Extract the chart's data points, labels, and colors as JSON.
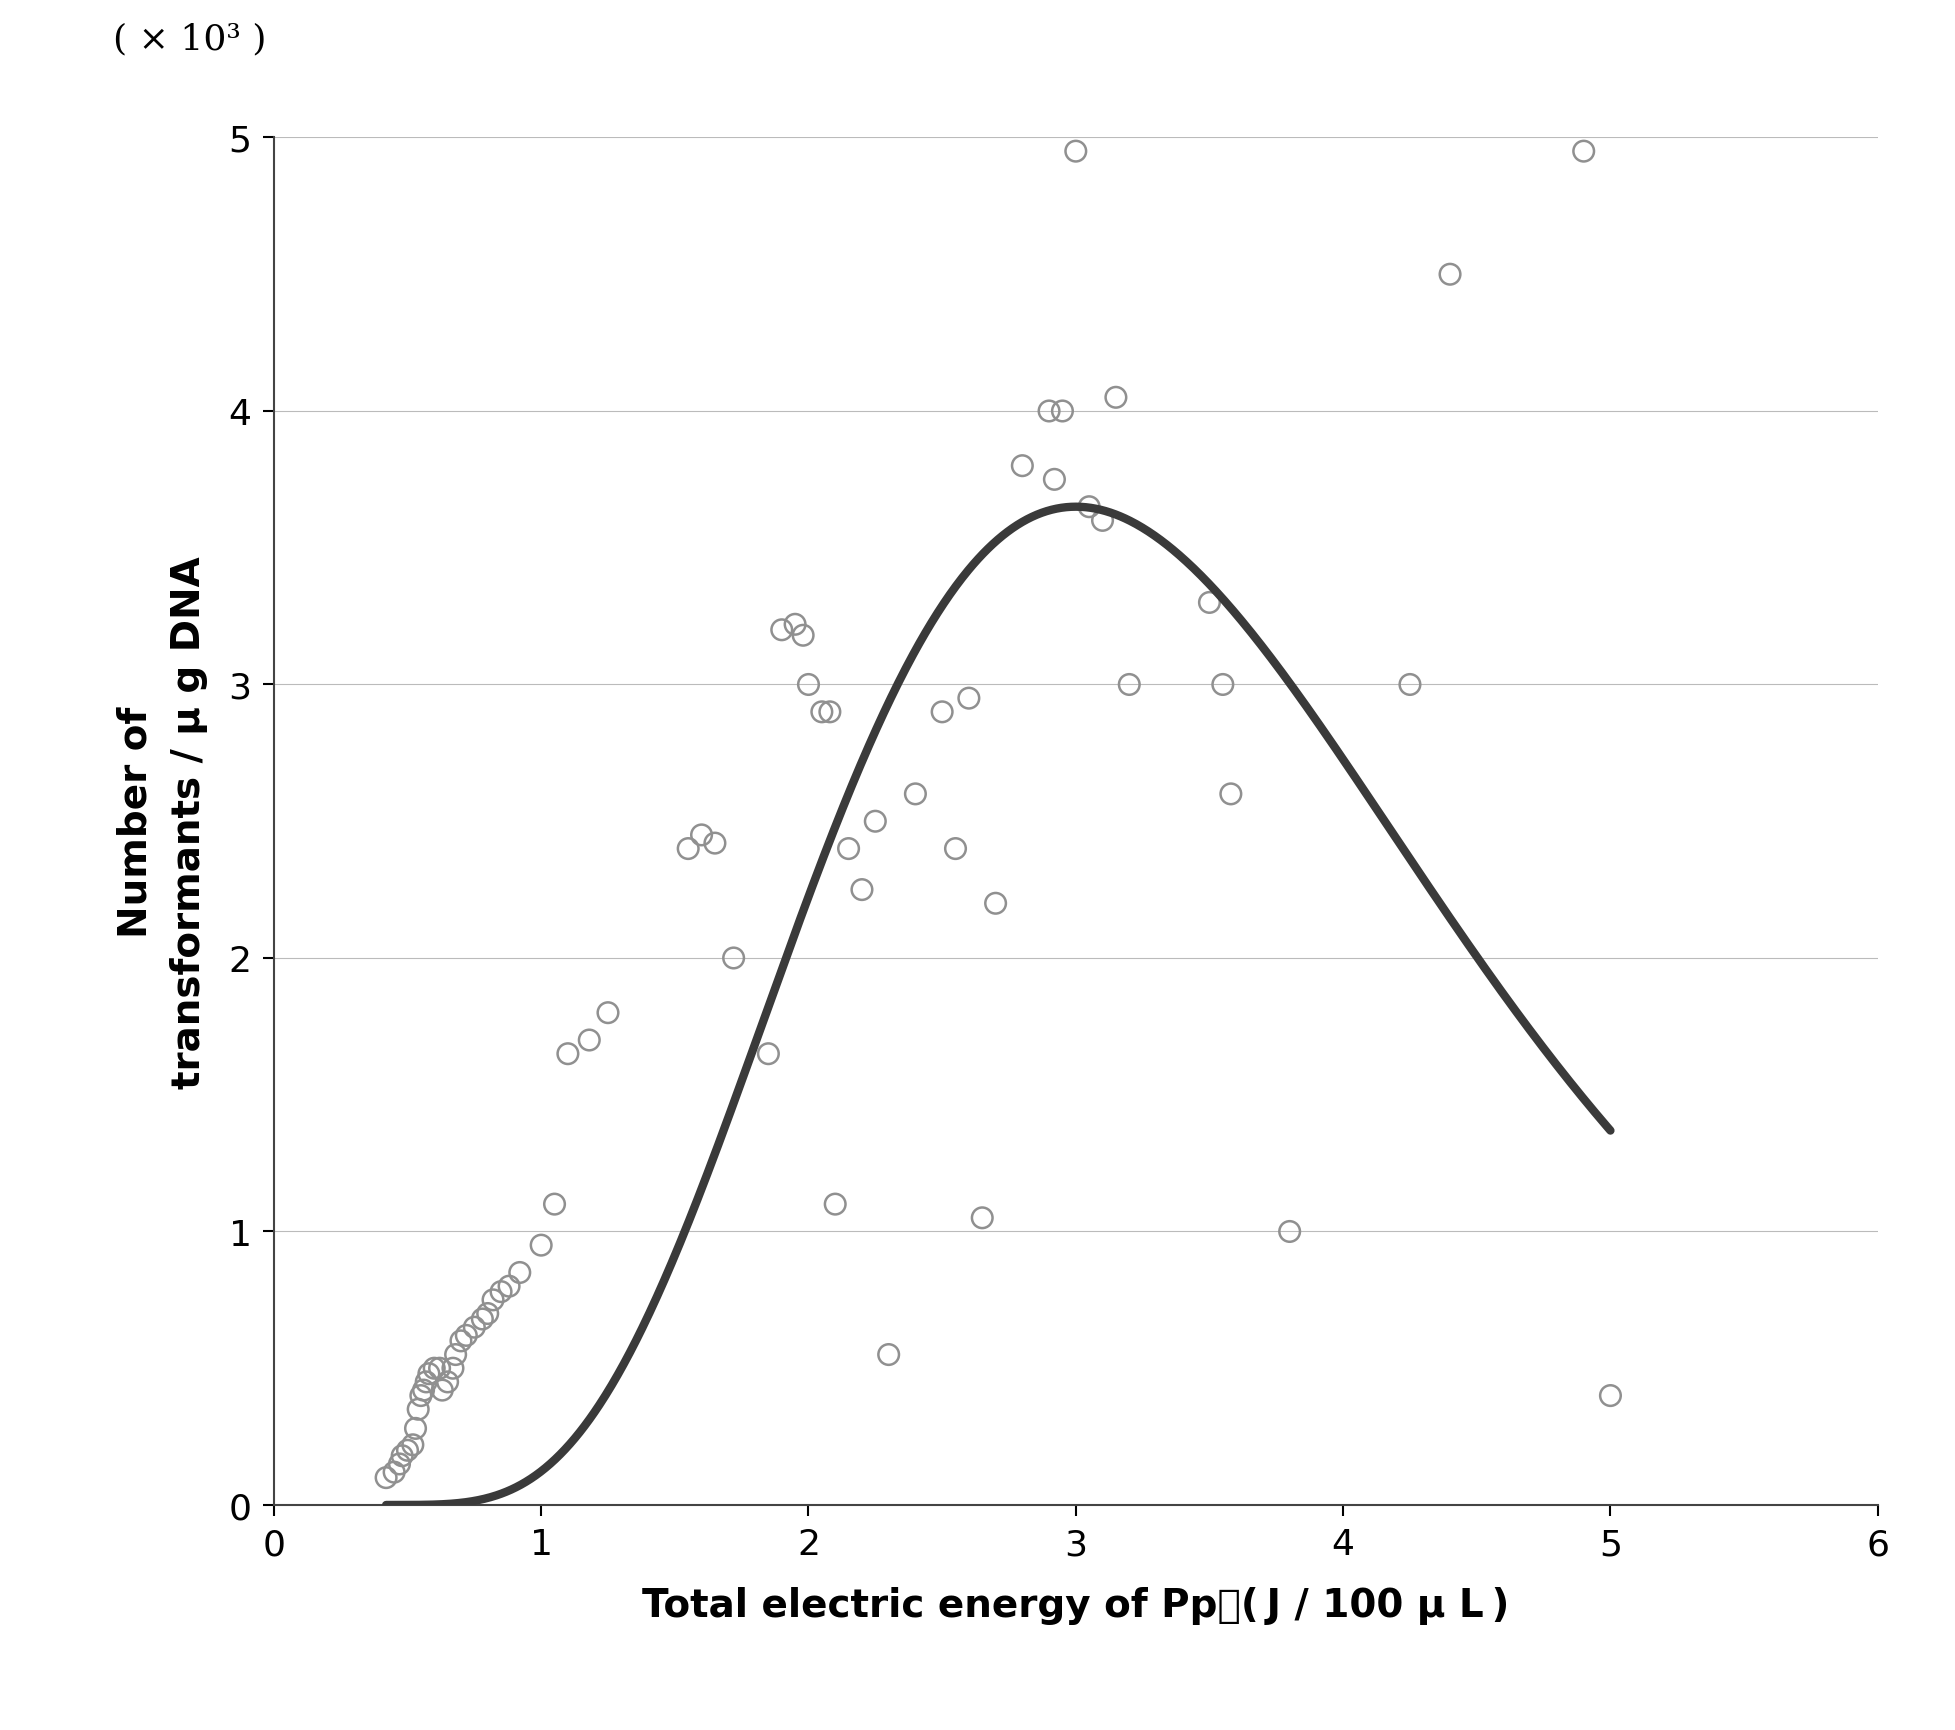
{
  "title_scale": "( × 10³ )",
  "xlabel": "Total electric energy of Pp　( J / 100 μ L )",
  "ylabel": "Number of\ntransformants / μ g DNA",
  "xlim": [
    0,
    6
  ],
  "ylim": [
    0,
    5
  ],
  "xticks": [
    0,
    1,
    2,
    3,
    4,
    5,
    6
  ],
  "yticks": [
    0,
    1,
    2,
    3,
    4,
    5
  ],
  "scatter_x": [
    0.42,
    0.45,
    0.47,
    0.48,
    0.5,
    0.52,
    0.53,
    0.54,
    0.55,
    0.56,
    0.57,
    0.58,
    0.6,
    0.62,
    0.63,
    0.65,
    0.67,
    0.68,
    0.7,
    0.72,
    0.75,
    0.78,
    0.8,
    0.82,
    0.85,
    0.88,
    0.92,
    1.0,
    1.05,
    1.1,
    1.18,
    1.25,
    1.55,
    1.6,
    1.65,
    1.72,
    1.85,
    1.9,
    1.95,
    1.98,
    2.0,
    2.05,
    2.08,
    2.1,
    2.15,
    2.2,
    2.25,
    2.3,
    2.4,
    2.5,
    2.55,
    2.6,
    2.65,
    2.7,
    2.8,
    2.9,
    2.92,
    2.95,
    3.0,
    3.05,
    3.1,
    3.15,
    3.2,
    3.5,
    3.55,
    3.58,
    3.8,
    4.25,
    4.4,
    4.9,
    5.0
  ],
  "scatter_y": [
    0.1,
    0.12,
    0.15,
    0.18,
    0.2,
    0.22,
    0.28,
    0.35,
    0.4,
    0.42,
    0.45,
    0.48,
    0.5,
    0.5,
    0.42,
    0.45,
    0.5,
    0.55,
    0.6,
    0.62,
    0.65,
    0.68,
    0.7,
    0.75,
    0.78,
    0.8,
    0.85,
    0.95,
    1.1,
    1.65,
    1.7,
    1.8,
    2.4,
    2.45,
    2.42,
    2.0,
    1.65,
    3.2,
    3.22,
    3.18,
    3.0,
    2.9,
    2.9,
    1.1,
    2.4,
    2.25,
    2.5,
    0.55,
    2.6,
    2.9,
    2.4,
    2.95,
    1.05,
    2.2,
    3.8,
    4.0,
    3.75,
    4.0,
    4.95,
    3.65,
    3.6,
    4.05,
    3.0,
    3.3,
    3.0,
    2.6,
    1.0,
    3.0,
    4.5,
    4.95,
    0.4
  ],
  "curve_peak_x": 3.0,
  "curve_peak_y": 3.65,
  "curve_start_x": 0.42,
  "curve_end_x": 5.0,
  "background_color": "#ffffff",
  "scatter_edgecolor": "#909090",
  "curve_color": "#3a3a3a",
  "grid_color": "#bbbbbb",
  "title_fontsize": 26,
  "label_fontsize": 28,
  "tick_fontsize": 26
}
